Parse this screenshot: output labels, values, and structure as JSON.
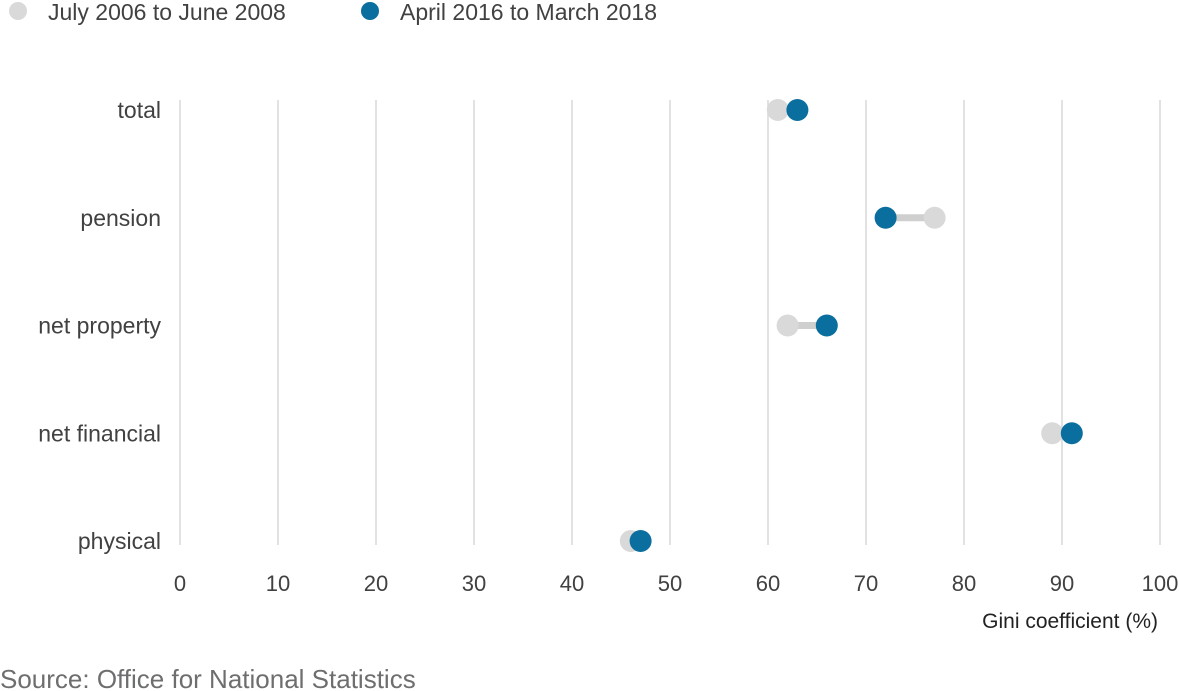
{
  "chart_data": {
    "type": "dumbbell",
    "title": "",
    "legend": [
      {
        "name": "July 2006 to June 2008",
        "color": "#d9d9d9"
      },
      {
        "name": "April 2016 to March 2018",
        "color": "#0a6e9e"
      }
    ],
    "categories": [
      "total",
      "pension",
      "net property",
      "net financial",
      "physical"
    ],
    "series": [
      {
        "name": "July 2006 to June 2008",
        "values": [
          61,
          77,
          62,
          89,
          46
        ]
      },
      {
        "name": "April 2016 to March 2018",
        "values": [
          63,
          72,
          66,
          91,
          47
        ]
      }
    ],
    "xlim": [
      0,
      100
    ],
    "xticks": [
      "0",
      "10",
      "20",
      "30",
      "40",
      "50",
      "60",
      "70",
      "80",
      "90",
      "100"
    ],
    "xlabel": "Gini coefficient (%)",
    "ylabel": "",
    "grid": true,
    "legend_placement": "top-left",
    "source": "Source: Office for National Statistics"
  }
}
